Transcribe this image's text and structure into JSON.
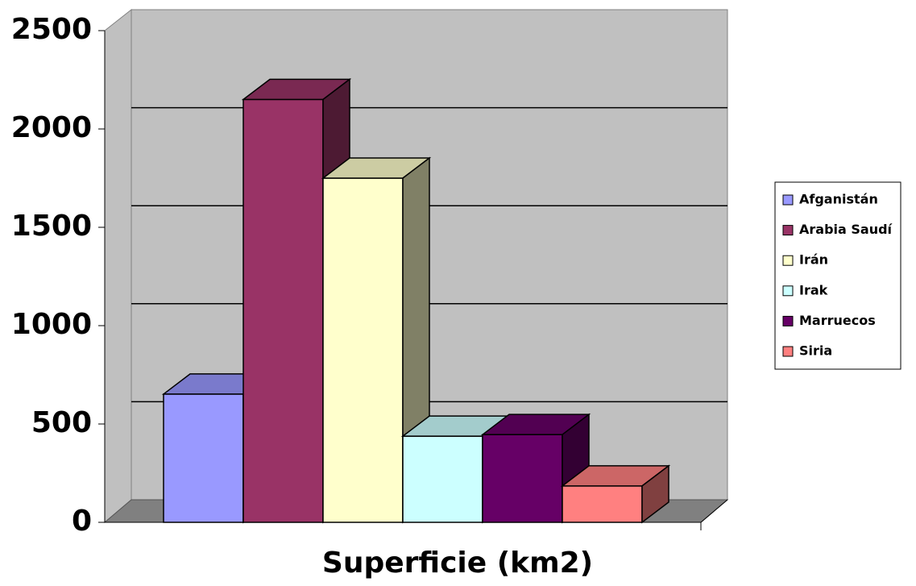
{
  "chart_data": {
    "type": "bar3d",
    "categories": [
      "Superficie (km2)"
    ],
    "series": [
      {
        "name": "Afganistán",
        "color": "#9999ff",
        "values": [
          652
        ]
      },
      {
        "name": "Arabia Saudí",
        "color": "#993366",
        "values": [
          2150
        ]
      },
      {
        "name": "Irán",
        "color": "#ffffcc",
        "values": [
          1750
        ]
      },
      {
        "name": "Irak",
        "color": "#ccffff",
        "values": [
          438
        ]
      },
      {
        "name": "Marruecos",
        "color": "#660066",
        "values": [
          446
        ]
      },
      {
        "name": "Siria",
        "color": "#ff8080",
        "values": [
          185
        ]
      }
    ],
    "ylim": [
      0,
      2500
    ],
    "yticks": [
      0,
      500,
      1000,
      1500,
      2000,
      2500
    ],
    "grid": true,
    "legend": "right"
  }
}
